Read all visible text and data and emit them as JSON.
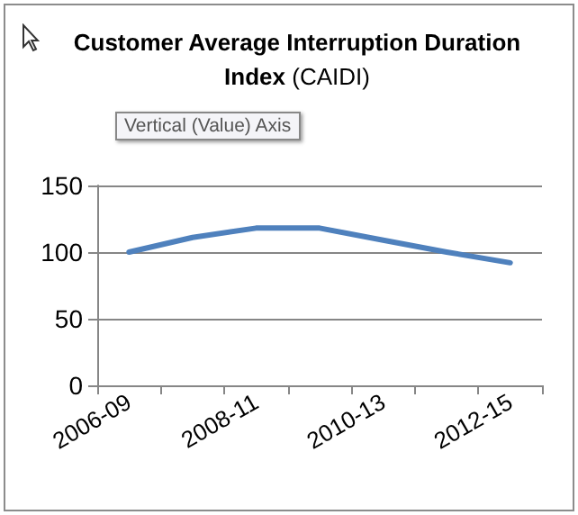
{
  "chart_data": {
    "type": "line",
    "title": "Customer Average Interruption Duration Index (CAIDI)",
    "annotations": [
      "Vertical (Value) Axis"
    ],
    "categories": [
      "2006-09",
      null,
      "2008-11",
      null,
      "2010-13",
      null,
      "2012-15"
    ],
    "series": [
      {
        "color": "#4f81bd",
        "values": [
          100,
          111,
          118,
          118,
          109,
          100,
          92
        ]
      }
    ],
    "ylim": [
      0,
      150
    ],
    "yticks": [
      0,
      50,
      100,
      150
    ],
    "grid": "y",
    "marker": "none",
    "line_style": "solid"
  }
}
